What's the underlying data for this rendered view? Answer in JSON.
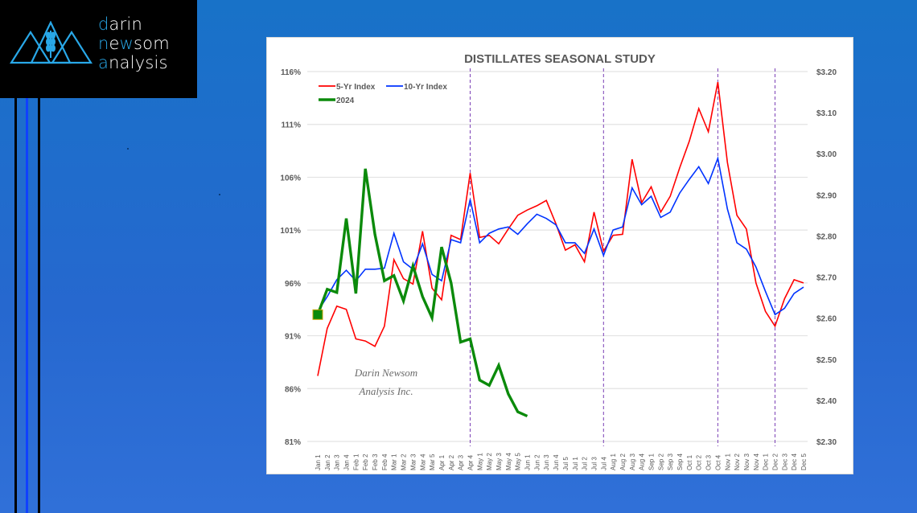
{
  "brand": {
    "line1_highlight": "d",
    "line1_rest": "arin",
    "line2_highlight1": "n",
    "line2_mid": "e",
    "line2_highlight2": "w",
    "line2_rest": "som",
    "line3_highlight": "a",
    "line3_rest": "nalysis",
    "logo_icon": "mountains-wheat-icon",
    "colors": {
      "background": "#000000",
      "accent": "#29a8e8",
      "text": "#ffffff"
    }
  },
  "decor": {
    "vertical_lines": [
      {
        "color": "#000000"
      },
      {
        "color": "#1040ff"
      },
      {
        "color": "#000000"
      }
    ]
  },
  "chart_data": {
    "type": "line",
    "title": "DISTILLATES SEASONAL STUDY",
    "watermark": [
      "Darin Newsom",
      "Analysis Inc."
    ],
    "xlabel": "",
    "ylabel": "",
    "categories": [
      "Jan 1",
      "Jan 2",
      "Jan 3",
      "Jan 4",
      "Feb 1",
      "Feb 2",
      "Feb 3",
      "Feb 4",
      "Mar 1",
      "Mar 2",
      "Mar 3",
      "Mar 4",
      "Mar 5",
      "Apr 1",
      "Apr 2",
      "Apr 3",
      "Apr 4",
      "May 1",
      "May 2",
      "May 3",
      "May 4",
      "May 5",
      "Jun 1",
      "Jun 2",
      "Jun 3",
      "Jun 4",
      "Jul 5",
      "Jul 1",
      "Jul 2",
      "Jul 3",
      "Jul 4",
      "Aug 1",
      "Aug 2",
      "Aug 3",
      "Aug 4",
      "Sep 1",
      "Sep 2",
      "Sep 3",
      "Sep 4",
      "Oct 1",
      "Oct 2",
      "Oct 3",
      "Oct 4",
      "Nov 1",
      "Nov 2",
      "Nov 3",
      "Nov 4",
      "Dec 1",
      "Dec 2",
      "Dec 3",
      "Dec 4",
      "Dec 5"
    ],
    "y_left": {
      "ylim": [
        81,
        116
      ],
      "ticks": [
        "116%",
        "111%",
        "106%",
        "101%",
        "96%",
        "91%",
        "86%",
        "81%"
      ],
      "tick_values": [
        116,
        111,
        106,
        101,
        96,
        91,
        86,
        81
      ]
    },
    "y_right": {
      "ylim": [
        2.3,
        3.2
      ],
      "ticks": [
        "$3.20",
        "$3.10",
        "$3.00",
        "$2.90",
        "$2.80",
        "$2.70",
        "$2.60",
        "$2.50",
        "$2.40",
        "$2.30"
      ]
    },
    "grid": true,
    "legend": {
      "placement": "top-left"
    },
    "vertical_markers": [
      "Apr 4",
      "Jul 4",
      "Oct 4",
      "Dec 2"
    ],
    "series": [
      {
        "name": "5-Yr Index",
        "color": "#ff0000",
        "axis": "left",
        "values": [
          87.2,
          91.7,
          93.8,
          93.5,
          90.7,
          90.5,
          90.0,
          91.9,
          98.2,
          96.4,
          95.9,
          100.9,
          95.5,
          94.4,
          100.5,
          100.1,
          106.4,
          100.3,
          100.5,
          99.7,
          101.1,
          102.4,
          102.9,
          103.3,
          103.8,
          101.6,
          99.1,
          99.6,
          98.0,
          102.7,
          99.0,
          100.5,
          100.6,
          107.7,
          103.6,
          105.1,
          102.7,
          104.2,
          106.9,
          109.4,
          112.5,
          110.3,
          115.0,
          107.4,
          102.4,
          101.1,
          96.0,
          93.3,
          91.9,
          94.5,
          96.3,
          96.0
        ]
      },
      {
        "name": "10-Yr Index",
        "color": "#0033ff",
        "axis": "left",
        "values": [
          93.3,
          94.7,
          96.3,
          97.2,
          96.2,
          97.3,
          97.3,
          97.4,
          100.7,
          98.0,
          97.3,
          99.7,
          96.8,
          96.2,
          100.1,
          99.8,
          103.9,
          99.8,
          100.7,
          101.1,
          101.3,
          100.6,
          101.6,
          102.5,
          102.1,
          101.5,
          99.8,
          99.8,
          98.8,
          101.1,
          98.6,
          101.0,
          101.3,
          105.0,
          103.4,
          104.2,
          102.2,
          102.7,
          104.5,
          105.8,
          107.0,
          105.4,
          107.8,
          103.0,
          99.8,
          99.2,
          97.5,
          95.2,
          93.0,
          93.6,
          95.0,
          95.6
        ]
      },
      {
        "name": "2024",
        "color": "#0b8a0b",
        "axis": "left",
        "values": [
          93.0,
          95.4,
          95.1,
          102.1,
          95.0,
          106.8,
          100.6,
          96.2,
          96.7,
          94.3,
          97.6,
          94.7,
          92.7,
          99.4,
          96.0,
          90.4,
          90.7,
          86.8,
          86.3,
          88.2,
          85.5,
          83.8,
          83.4
        ]
      }
    ]
  }
}
